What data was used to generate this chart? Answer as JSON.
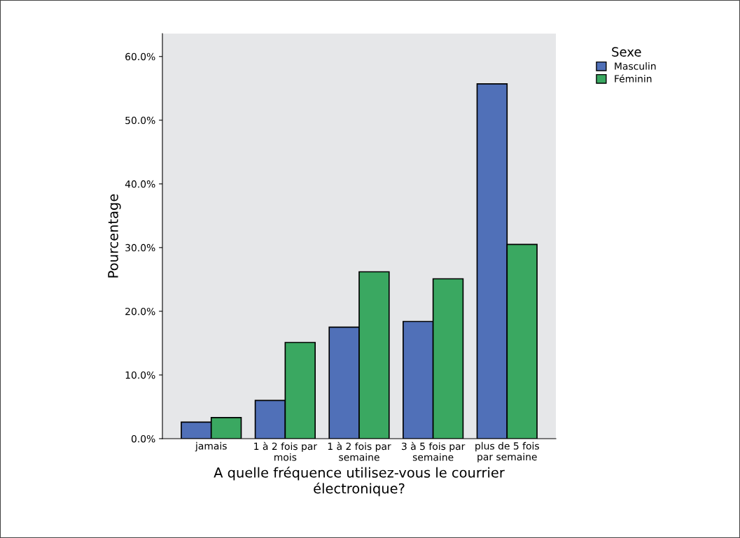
{
  "chart_data": {
    "type": "bar",
    "xlabel": "A quelle fréquence utilisez-vous le courrier\nélectronique?",
    "ylabel": "Pourcentage",
    "legend_title": "Sexe",
    "categories": [
      "jamais",
      "1 à 2 fois par\nmois",
      "1 à 2 fois par\nsemaine",
      "3 à 5 fois par\nsemaine",
      "plus de 5 fois\npar semaine"
    ],
    "series": [
      {
        "name": "Masculin",
        "color": "#5070b8",
        "values": [
          2.6,
          6.0,
          17.5,
          18.4,
          55.7
        ]
      },
      {
        "name": "Féminin",
        "color": "#3aa861",
        "values": [
          3.3,
          15.1,
          26.2,
          25.1,
          30.5
        ]
      }
    ],
    "ylim": [
      0,
      63.6
    ],
    "yticks": [
      {
        "value": 0,
        "label": "0.0%"
      },
      {
        "value": 10,
        "label": "10.0%"
      },
      {
        "value": 20,
        "label": "20.0%"
      },
      {
        "value": 30,
        "label": "30.0%"
      },
      {
        "value": 40,
        "label": "40.0%"
      },
      {
        "value": 50,
        "label": "50.0%"
      },
      {
        "value": 60,
        "label": "60.0%"
      }
    ],
    "grid": false,
    "legend": "top right"
  }
}
